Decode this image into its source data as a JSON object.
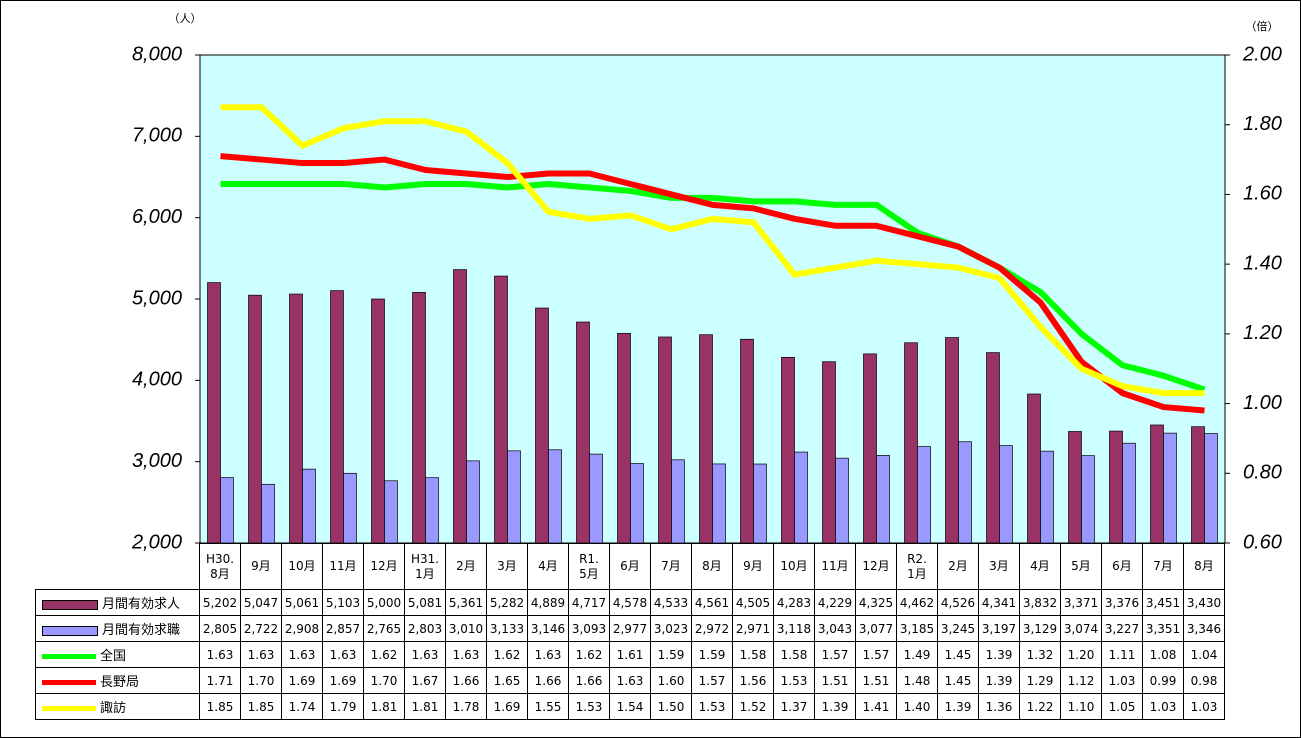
{
  "chart_data": {
    "type": "bar-line",
    "y_unit": "（人）",
    "y2_unit": "（倍）",
    "categories": [
      "H30.\n8月",
      "9月",
      "10月",
      "11月",
      "12月",
      "H31.\n1月",
      "2月",
      "3月",
      "4月",
      "R1.\n5月",
      "6月",
      "7月",
      "8月",
      "9月",
      "10月",
      "11月",
      "12月",
      "R2.\n1月",
      "2月",
      "3月",
      "4月",
      "5月",
      "6月",
      "7月",
      "8月"
    ],
    "ylim": [
      2000,
      8000
    ],
    "yticks": [
      {
        "value": 2000,
        "label": "2,000"
      },
      {
        "value": 3000,
        "label": "3,000"
      },
      {
        "value": 4000,
        "label": "4,000"
      },
      {
        "value": 5000,
        "label": "5,000"
      },
      {
        "value": 6000,
        "label": "6,000"
      },
      {
        "value": 7000,
        "label": "7,000"
      },
      {
        "value": 8000,
        "label": "8,000"
      }
    ],
    "y2lim": [
      0.6,
      2.0
    ],
    "y2ticks": [
      {
        "value": 0.6,
        "label": "0.60"
      },
      {
        "value": 0.8,
        "label": "0.80"
      },
      {
        "value": 1.0,
        "label": "1.00"
      },
      {
        "value": 1.2,
        "label": "1.20"
      },
      {
        "value": 1.4,
        "label": "1.40"
      },
      {
        "value": 1.6,
        "label": "1.60"
      },
      {
        "value": 1.8,
        "label": "1.80"
      },
      {
        "value": 2.0,
        "label": "2.00"
      }
    ],
    "background": "#ccffff",
    "series": [
      {
        "name": "月間有効求人",
        "type": "bar",
        "color": "#993366",
        "values": [
          5202,
          5047,
          5061,
          5103,
          5000,
          5081,
          5361,
          5282,
          4889,
          4717,
          4578,
          4533,
          4561,
          4505,
          4283,
          4229,
          4325,
          4462,
          4526,
          4341,
          3832,
          3371,
          3376,
          3451,
          3430
        ],
        "value_labels": [
          "5,202",
          "5,047",
          "5,061",
          "5,103",
          "5,000",
          "5,081",
          "5,361",
          "5,282",
          "4,889",
          "4,717",
          "4,578",
          "4,533",
          "4,561",
          "4,505",
          "4,283",
          "4,229",
          "4,325",
          "4,462",
          "4,526",
          "4,341",
          "3,832",
          "3,371",
          "3,376",
          "3,451",
          "3,430"
        ]
      },
      {
        "name": "月間有効求職",
        "type": "bar",
        "color": "#9999ff",
        "values": [
          2805,
          2722,
          2908,
          2857,
          2765,
          2803,
          3010,
          3133,
          3146,
          3093,
          2977,
          3023,
          2972,
          2971,
          3118,
          3043,
          3077,
          3185,
          3245,
          3197,
          3129,
          3074,
          3227,
          3351,
          3346
        ],
        "value_labels": [
          "2,805",
          "2,722",
          "2,908",
          "2,857",
          "2,765",
          "2,803",
          "3,010",
          "3,133",
          "3,146",
          "3,093",
          "2,977",
          "3,023",
          "2,972",
          "2,971",
          "3,118",
          "3,043",
          "3,077",
          "3,185",
          "3,245",
          "3,197",
          "3,129",
          "3,074",
          "3,227",
          "3,351",
          "3,346"
        ]
      },
      {
        "name": "全国",
        "type": "line",
        "axis": "y2",
        "color": "#00ff00",
        "values": [
          1.63,
          1.63,
          1.63,
          1.63,
          1.62,
          1.63,
          1.63,
          1.62,
          1.63,
          1.62,
          1.61,
          1.59,
          1.59,
          1.58,
          1.58,
          1.57,
          1.57,
          1.49,
          1.45,
          1.39,
          1.32,
          1.2,
          1.11,
          1.08,
          1.04
        ],
        "value_labels": [
          "1.63",
          "1.63",
          "1.63",
          "1.63",
          "1.62",
          "1.63",
          "1.63",
          "1.62",
          "1.63",
          "1.62",
          "1.61",
          "1.59",
          "1.59",
          "1.58",
          "1.58",
          "1.57",
          "1.57",
          "1.49",
          "1.45",
          "1.39",
          "1.32",
          "1.20",
          "1.11",
          "1.08",
          "1.04"
        ]
      },
      {
        "name": "長野局",
        "type": "line",
        "axis": "y2",
        "color": "#ff0000",
        "values": [
          1.71,
          1.7,
          1.69,
          1.69,
          1.7,
          1.67,
          1.66,
          1.65,
          1.66,
          1.66,
          1.63,
          1.6,
          1.57,
          1.56,
          1.53,
          1.51,
          1.51,
          1.48,
          1.45,
          1.39,
          1.29,
          1.12,
          1.03,
          0.99,
          0.98
        ],
        "value_labels": [
          "1.71",
          "1.70",
          "1.69",
          "1.69",
          "1.70",
          "1.67",
          "1.66",
          "1.65",
          "1.66",
          "1.66",
          "1.63",
          "1.60",
          "1.57",
          "1.56",
          "1.53",
          "1.51",
          "1.51",
          "1.48",
          "1.45",
          "1.39",
          "1.29",
          "1.12",
          "1.03",
          "0.99",
          "0.98"
        ]
      },
      {
        "name": "諏訪",
        "type": "line",
        "axis": "y2",
        "color": "#ffff00",
        "values": [
          1.85,
          1.85,
          1.74,
          1.79,
          1.81,
          1.81,
          1.78,
          1.69,
          1.55,
          1.53,
          1.54,
          1.5,
          1.53,
          1.52,
          1.37,
          1.39,
          1.41,
          1.4,
          1.39,
          1.36,
          1.22,
          1.1,
          1.05,
          1.03,
          1.03
        ],
        "value_labels": [
          "1.85",
          "1.85",
          "1.74",
          "1.79",
          "1.81",
          "1.81",
          "1.78",
          "1.69",
          "1.55",
          "1.53",
          "1.54",
          "1.50",
          "1.53",
          "1.52",
          "1.37",
          "1.39",
          "1.41",
          "1.40",
          "1.39",
          "1.36",
          "1.22",
          "1.10",
          "1.05",
          "1.03",
          "1.03"
        ]
      }
    ]
  }
}
